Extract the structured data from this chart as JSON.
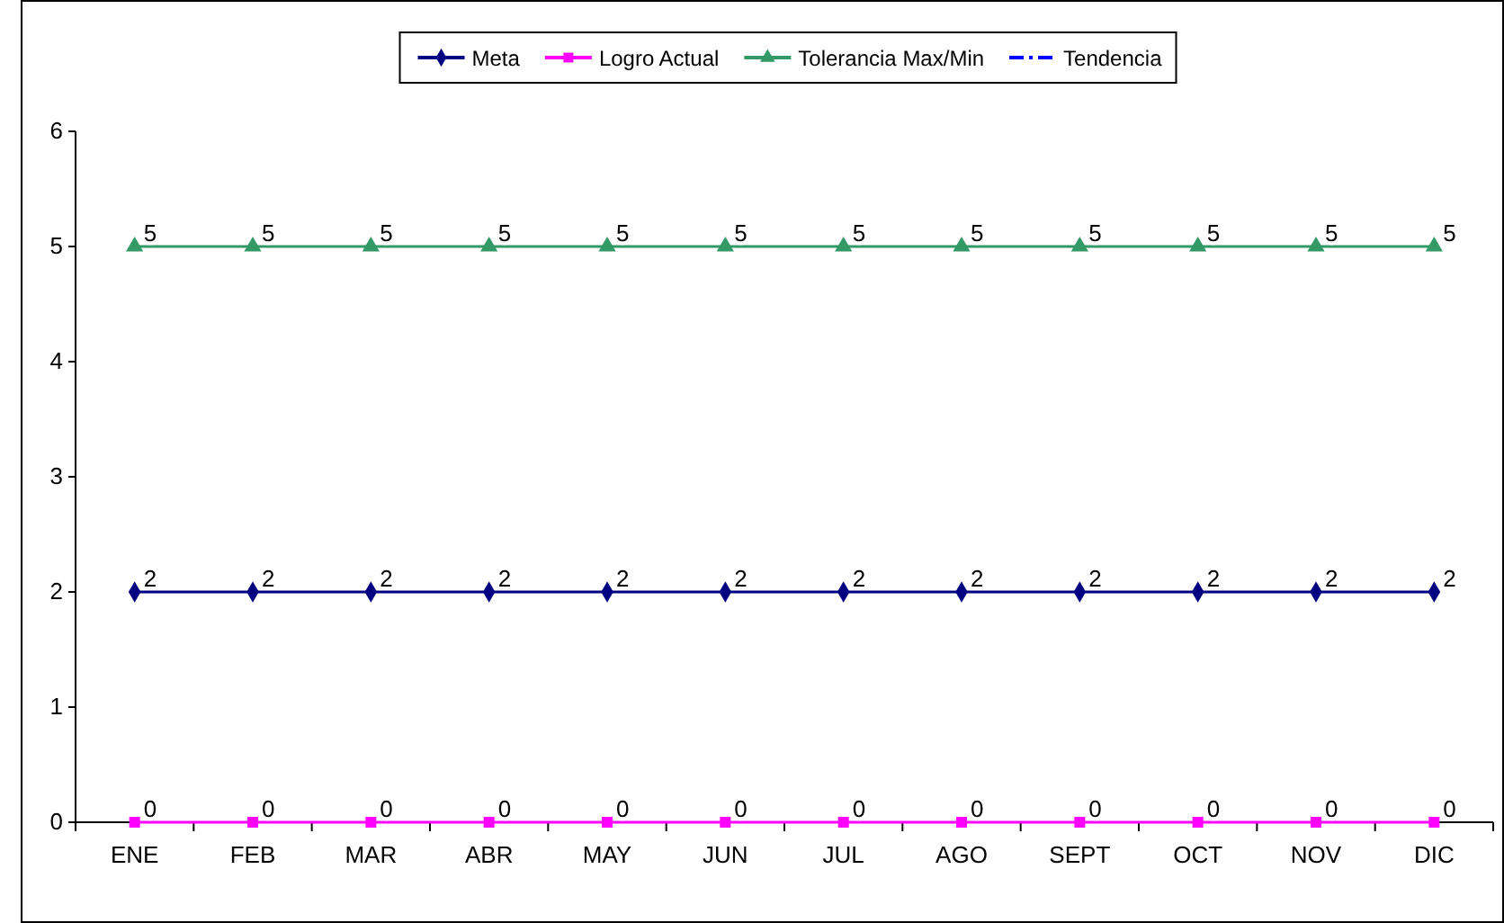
{
  "chart_data": {
    "type": "line",
    "categories": [
      "ENE",
      "FEB",
      "MAR",
      "ABR",
      "MAY",
      "JUN",
      "JUL",
      "AGO",
      "SEPT",
      "OCT",
      "NOV",
      "DIC"
    ],
    "series": [
      {
        "name": "Meta",
        "color": "#000080",
        "marker": "diamond",
        "values": [
          2,
          2,
          2,
          2,
          2,
          2,
          2,
          2,
          2,
          2,
          2,
          2
        ]
      },
      {
        "name": "Logro Actual",
        "color": "#ff00ff",
        "marker": "square",
        "values": [
          0,
          0,
          0,
          0,
          0,
          0,
          0,
          0,
          0,
          0,
          0,
          0
        ]
      },
      {
        "name": "Tolerancia Max/Min",
        "color": "#339966",
        "marker": "triangle",
        "values": [
          5,
          5,
          5,
          5,
          5,
          5,
          5,
          5,
          5,
          5,
          5,
          5
        ]
      },
      {
        "name": "Tendencia",
        "color": "#0000ff",
        "marker": "none",
        "line_style": "dashed",
        "values": [
          null,
          null,
          null,
          null,
          null,
          null,
          null,
          null,
          null,
          null,
          null,
          null
        ]
      }
    ],
    "ylim": [
      0,
      6
    ],
    "yticks": [
      0,
      1,
      2,
      3,
      4,
      5,
      6
    ],
    "grid": false,
    "legend": "top",
    "data_labels": true
  }
}
